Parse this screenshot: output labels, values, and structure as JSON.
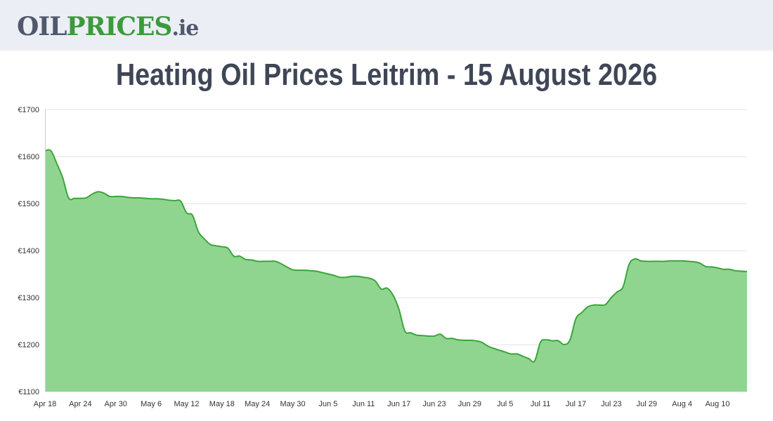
{
  "header": {
    "logo_part1": "OIL",
    "logo_part2": "PRICES",
    "logo_part3": ".ie"
  },
  "page": {
    "title": "Heating Oil Prices Leitrim - 15 August 2026"
  },
  "colors": {
    "line": "#3aa53a",
    "fill": "#8fd58f",
    "grid": "#e6e6e6",
    "axis": "#cccccc"
  },
  "chart_data": {
    "type": "area",
    "title": "",
    "xlabel": "",
    "ylabel": "",
    "ylim": [
      1100,
      1700
    ],
    "yticks": [
      1100,
      1200,
      1300,
      1400,
      1500,
      1600,
      1700
    ],
    "ytick_labels": [
      "€1100",
      "€1200",
      "€1300",
      "€1400",
      "€1500",
      "€1600",
      "€1700"
    ],
    "x_start": "2026-04-18",
    "x_end": "2026-08-15",
    "xticks": [
      "2026-04-18",
      "2026-04-24",
      "2026-04-30",
      "2026-05-06",
      "2026-05-12",
      "2026-05-18",
      "2026-05-24",
      "2026-05-30",
      "2026-06-05",
      "2026-06-11",
      "2026-06-17",
      "2026-06-23",
      "2026-06-29",
      "2026-07-05",
      "2026-07-11",
      "2026-07-17",
      "2026-07-23",
      "2026-07-29",
      "2026-08-04",
      "2026-08-10"
    ],
    "xtick_labels": [
      "Apr 18",
      "Apr 24",
      "Apr 30",
      "May 6",
      "May 12",
      "May 18",
      "May 24",
      "May 30",
      "Jun 5",
      "Jun 11",
      "Jun 17",
      "Jun 23",
      "Jun 29",
      "Jul 5",
      "Jul 11",
      "Jul 17",
      "Jul 23",
      "Jul 29",
      "Aug 4",
      "Aug 10"
    ],
    "grid": true,
    "legend": "none",
    "series": [
      {
        "x": [
          "2026-04-18",
          "2026-04-19",
          "2026-04-20",
          "2026-04-21",
          "2026-04-22",
          "2026-04-23",
          "2026-04-24",
          "2026-04-25",
          "2026-04-26",
          "2026-04-27",
          "2026-04-28",
          "2026-04-29",
          "2026-04-30",
          "2026-05-01",
          "2026-05-02",
          "2026-05-03",
          "2026-05-04",
          "2026-05-05",
          "2026-05-06",
          "2026-05-07",
          "2026-05-08",
          "2026-05-09",
          "2026-05-10",
          "2026-05-11",
          "2026-05-12",
          "2026-05-13",
          "2026-05-14",
          "2026-05-15",
          "2026-05-16",
          "2026-05-17",
          "2026-05-18",
          "2026-05-19",
          "2026-05-20",
          "2026-05-21",
          "2026-05-22",
          "2026-05-23",
          "2026-05-24",
          "2026-05-25",
          "2026-05-26",
          "2026-05-27",
          "2026-05-28",
          "2026-05-29",
          "2026-05-30",
          "2026-05-31",
          "2026-06-01",
          "2026-06-02",
          "2026-06-03",
          "2026-06-04",
          "2026-06-05",
          "2026-06-06",
          "2026-06-07",
          "2026-06-08",
          "2026-06-09",
          "2026-06-10",
          "2026-06-11",
          "2026-06-12",
          "2026-06-13",
          "2026-06-14",
          "2026-06-15",
          "2026-06-16",
          "2026-06-17",
          "2026-06-18",
          "2026-06-19",
          "2026-06-20",
          "2026-06-21",
          "2026-06-22",
          "2026-06-23",
          "2026-06-24",
          "2026-06-25",
          "2026-06-26",
          "2026-06-27",
          "2026-06-28",
          "2026-06-29",
          "2026-06-30",
          "2026-07-01",
          "2026-07-02",
          "2026-07-03",
          "2026-07-04",
          "2026-07-05",
          "2026-07-06",
          "2026-07-07",
          "2026-07-08",
          "2026-07-09",
          "2026-07-10",
          "2026-07-11",
          "2026-07-12",
          "2026-07-13",
          "2026-07-14",
          "2026-07-15",
          "2026-07-16",
          "2026-07-17",
          "2026-07-18",
          "2026-07-19",
          "2026-07-20",
          "2026-07-21",
          "2026-07-22",
          "2026-07-23",
          "2026-07-24",
          "2026-07-25",
          "2026-07-26",
          "2026-07-27",
          "2026-07-28",
          "2026-07-29",
          "2026-07-30",
          "2026-07-31",
          "2026-08-01",
          "2026-08-02",
          "2026-08-03",
          "2026-08-04",
          "2026-08-05",
          "2026-08-06",
          "2026-08-07",
          "2026-08-08",
          "2026-08-09",
          "2026-08-10",
          "2026-08-11",
          "2026-08-12",
          "2026-08-13",
          "2026-08-14",
          "2026-08-15"
        ],
        "values": [
          1612,
          1612,
          1585,
          1555,
          1512,
          1511,
          1511,
          1512,
          1520,
          1525,
          1522,
          1515,
          1515,
          1515,
          1513,
          1512,
          1512,
          1511,
          1510,
          1510,
          1509,
          1507,
          1506,
          1505,
          1480,
          1475,
          1440,
          1425,
          1413,
          1410,
          1408,
          1405,
          1388,
          1388,
          1381,
          1380,
          1377,
          1377,
          1377,
          1377,
          1372,
          1365,
          1359,
          1358,
          1358,
          1357,
          1356,
          1353,
          1350,
          1347,
          1343,
          1343,
          1345,
          1345,
          1343,
          1341,
          1335,
          1318,
          1320,
          1305,
          1275,
          1229,
          1225,
          1220,
          1219,
          1218,
          1218,
          1222,
          1213,
          1213,
          1210,
          1209,
          1209,
          1208,
          1205,
          1197,
          1192,
          1188,
          1184,
          1180,
          1180,
          1175,
          1170,
          1165,
          1205,
          1210,
          1208,
          1208,
          1200,
          1210,
          1255,
          1268,
          1280,
          1284,
          1284,
          1285,
          1300,
          1312,
          1323,
          1370,
          1382,
          1378,
          1377,
          1377,
          1377,
          1377,
          1378,
          1378,
          1378,
          1377,
          1376,
          1373,
          1366,
          1365,
          1363,
          1360,
          1360,
          1357,
          1356,
          1355
        ]
      }
    ]
  }
}
